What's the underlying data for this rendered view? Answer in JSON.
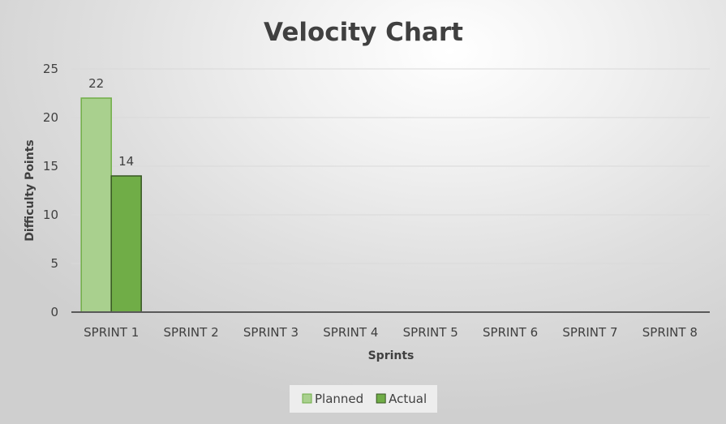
{
  "chart_data": {
    "type": "bar",
    "title": "Velocity Chart",
    "xlabel": "Sprints",
    "ylabel": "Difficulty Points",
    "categories": [
      "SPRINT 1",
      "SPRINT 2",
      "SPRINT 3",
      "SPRINT 4",
      "SPRINT 5",
      "SPRINT 6",
      "SPRINT 7",
      "SPRINT 8"
    ],
    "series": [
      {
        "name": "Planned",
        "values": [
          22,
          null,
          null,
          null,
          null,
          null,
          null,
          null
        ],
        "color": "#a9d08e",
        "border": "#70ad47"
      },
      {
        "name": "Actual",
        "values": [
          14,
          null,
          null,
          null,
          null,
          null,
          null,
          null
        ],
        "color": "#70ad47",
        "border": "#375623"
      }
    ],
    "ylim": [
      0,
      25
    ],
    "yticks": [
      0,
      5,
      10,
      15,
      20,
      25
    ],
    "grid": true,
    "legend": "bottom",
    "data_labels": true
  }
}
